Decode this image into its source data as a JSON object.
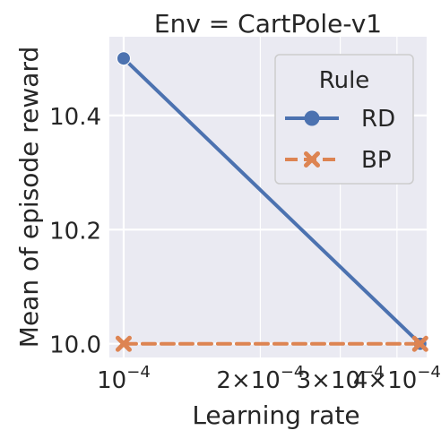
{
  "chart_data": {
    "type": "line",
    "title": "Env = CartPole-v1",
    "xlabel": "Learning rate",
    "ylabel": "Mean of episode reward",
    "x_scale": "log",
    "xlim": [
      9.3e-05,
      0.000465
    ],
    "ylim": [
      9.976,
      10.538
    ],
    "xticks": [
      {
        "value": 0.0001,
        "base": "10",
        "exp": "−4",
        "mant": ""
      },
      {
        "value": 0.0002,
        "base": "10",
        "exp": "−4",
        "mant": "2×"
      },
      {
        "value": 0.0003,
        "base": "10",
        "exp": "−4",
        "mant": "3×"
      },
      {
        "value": 0.0004,
        "base": "10",
        "exp": "−4",
        "mant": "4×"
      }
    ],
    "yticks": [
      {
        "value": 10.0,
        "label": "10.0"
      },
      {
        "value": 10.2,
        "label": "10.2"
      },
      {
        "value": 10.4,
        "label": "10.4"
      }
    ],
    "grid": true,
    "legend": {
      "title": "Rule",
      "placement": "top-right"
    },
    "series": [
      {
        "name": "RD",
        "x": [
          0.0001,
          0.00045
        ],
        "y": [
          10.5,
          10.0
        ],
        "color": "#4c72b0",
        "marker": "circle",
        "dash": "solid"
      },
      {
        "name": "BP",
        "x": [
          0.0001,
          0.00045
        ],
        "y": [
          10.0,
          10.0
        ],
        "color": "#dd8452",
        "marker": "x",
        "dash": "dashed"
      }
    ]
  }
}
